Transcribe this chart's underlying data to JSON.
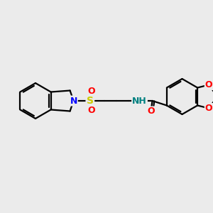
{
  "bg_color": "#ebebeb",
  "bond_color": "#000000",
  "bond_width": 1.6,
  "N_color": "#0000ff",
  "S_color": "#cccc00",
  "O_color": "#ff0000",
  "H_color": "#008080",
  "figsize": [
    3.0,
    3.0
  ],
  "dpi": 100,
  "xlim": [
    0,
    300
  ],
  "ylim": [
    0,
    300
  ]
}
